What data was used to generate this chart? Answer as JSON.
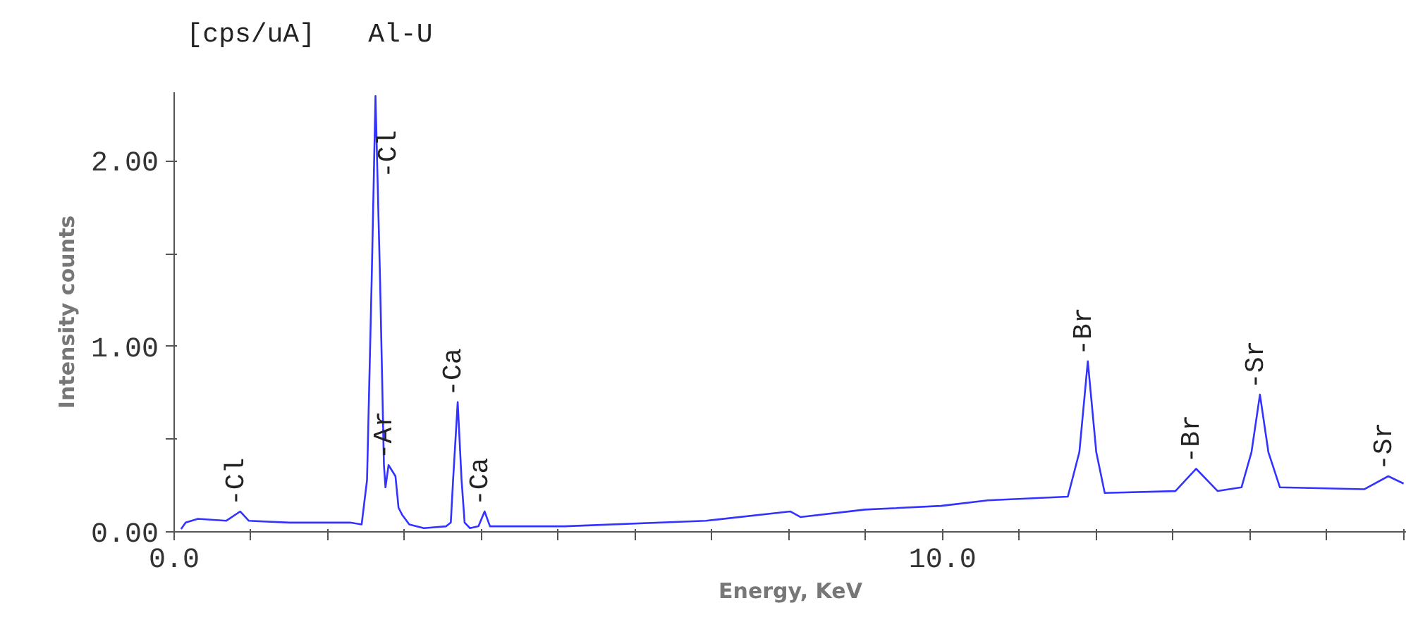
{
  "chart_data": {
    "type": "line",
    "xlabel": "Energy, KeV",
    "ylabel": "Intensity counts",
    "annotations": [
      "[cps/uA]",
      "Al-U",
      {
        "text": "-Cl",
        "x": 0.86,
        "y": 0.11
      },
      {
        "text": "-Cl",
        "x": 2.62,
        "y": 2.35
      },
      {
        "text": "-Ar",
        "x": 2.79,
        "y": 0.36
      },
      {
        "text": "-Ca",
        "x": 3.69,
        "y": 0.7
      },
      {
        "text": "-Ca",
        "x": 4.04,
        "y": 0.11
      },
      {
        "text": "-Br",
        "x": 11.89,
        "y": 0.92
      },
      {
        "text": "-Br",
        "x": 13.3,
        "y": 0.34
      },
      {
        "text": "-Sr",
        "x": 14.13,
        "y": 0.74
      },
      {
        "text": "-Sr",
        "x": 15.8,
        "y": 0.3
      }
    ],
    "series": [
      {
        "color": "#3333ff",
        "x": [
          0.09,
          0.15,
          0.31,
          0.68,
          0.86,
          0.97,
          1.5,
          2.29,
          2.44,
          2.51,
          2.57,
          2.62,
          2.68,
          2.73,
          2.75,
          2.79,
          2.88,
          2.92,
          2.97,
          3.06,
          3.25,
          3.54,
          3.6,
          3.63,
          3.69,
          3.74,
          3.78,
          3.85,
          3.96,
          4.04,
          4.11,
          5.08,
          6.92,
          8.02,
          8.15,
          8.99,
          9.98,
          10.59,
          11.63,
          11.78,
          11.89,
          12.0,
          12.11,
          13.03,
          13.3,
          13.58,
          13.89,
          14.02,
          14.13,
          14.24,
          14.39,
          15.49,
          15.8,
          16.0
        ],
        "values": [
          0.015,
          0.05,
          0.07,
          0.06,
          0.11,
          0.06,
          0.05,
          0.05,
          0.04,
          0.28,
          1.35,
          2.35,
          1.35,
          0.36,
          0.24,
          0.36,
          0.3,
          0.13,
          0.09,
          0.04,
          0.02,
          0.03,
          0.05,
          0.28,
          0.7,
          0.28,
          0.05,
          0.02,
          0.03,
          0.11,
          0.03,
          0.03,
          0.06,
          0.11,
          0.08,
          0.12,
          0.14,
          0.17,
          0.19,
          0.43,
          0.92,
          0.43,
          0.21,
          0.22,
          0.34,
          0.22,
          0.24,
          0.43,
          0.74,
          0.43,
          0.24,
          0.23,
          0.3,
          0.26
        ]
      }
    ],
    "xlim": [
      0,
      16.04
    ],
    "ylim": [
      0,
      2.37
    ],
    "xticks": [
      {
        "value": 0,
        "label": "0.0"
      },
      {
        "value": 1,
        "label": null
      },
      {
        "value": 2,
        "label": null
      },
      {
        "value": 3,
        "label": null
      },
      {
        "value": 4,
        "label": null
      },
      {
        "value": 5,
        "label": null
      },
      {
        "value": 6,
        "label": null
      },
      {
        "value": 7,
        "label": null
      },
      {
        "value": 8,
        "label": null
      },
      {
        "value": 9,
        "label": null
      },
      {
        "value": 10,
        "label": "10.0"
      },
      {
        "value": 11,
        "label": null
      },
      {
        "value": 12,
        "label": null
      },
      {
        "value": 13,
        "label": null
      },
      {
        "value": 14,
        "label": null
      },
      {
        "value": 15,
        "label": null
      },
      {
        "value": 16,
        "label": null
      }
    ],
    "yticks": [
      {
        "value": 0,
        "label": "0.00"
      },
      {
        "value": 0.5,
        "label": null
      },
      {
        "value": 1,
        "label": "1.00"
      },
      {
        "value": 1.5,
        "label": null
      },
      {
        "value": 2,
        "label": "2.00"
      }
    ],
    "grid": false,
    "marker": "none",
    "line_style": "solid"
  }
}
